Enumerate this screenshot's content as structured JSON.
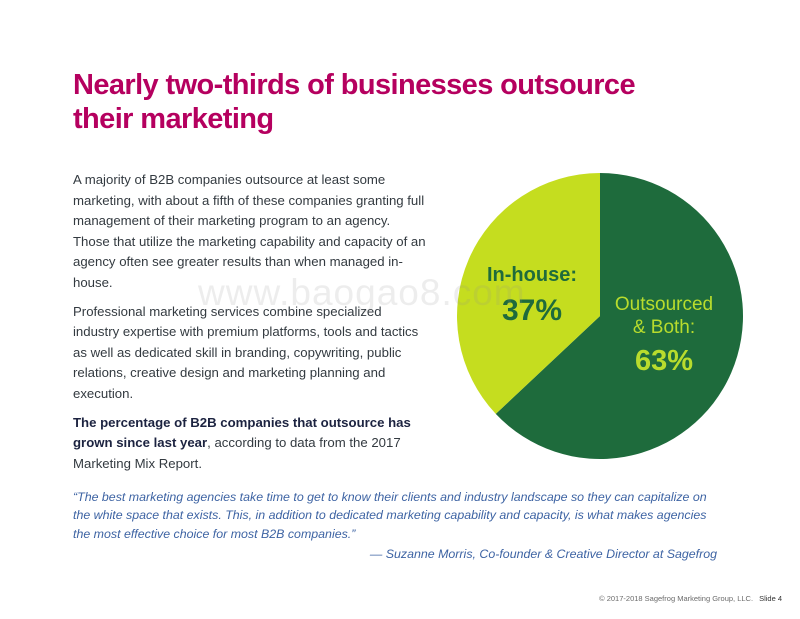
{
  "title": "Nearly two-thirds of businesses outsource their marketing",
  "paragraphs": [
    "A majority of B2B companies outsource at least some marketing, with about a fifth of these companies granting full management of their marketing program to an agency. Those that utilize the marketing capability and capacity of an agency often see greater results than when managed in-house.",
    "Professional marketing services combine specialized industry expertise with premium platforms, tools and tactics as well as dedicated skill in branding, copywriting, public relations, creative design and marketing planning and execution."
  ],
  "highlight": {
    "bold": "The percentage of B2B companies that outsource has grown since last year",
    "rest": ", according to data from the 2017 Marketing Mix Report."
  },
  "chart_data": {
    "type": "pie",
    "slices": [
      {
        "label": "In-house:",
        "value_label": "37%",
        "value": 37,
        "color": "#c5dd1f",
        "text_color": "#1f6b3c"
      },
      {
        "label": "Outsourced & Both:",
        "label_lines": [
          "Outsourced",
          "& Both:"
        ],
        "value_label": "63%",
        "value": 63,
        "color": "#1e6b3c",
        "text_color": "#b8dc2d"
      }
    ]
  },
  "quote": {
    "text": "“The best marketing agencies take time to get to know their clients and industry landscape so they can capitalize on the white space that exists. This, in addition to dedicated marketing capability and capacity, is what makes agencies the most effective choice for most B2B companies.”",
    "attribution": "— Suzanne Morris, Co-founder & Creative Director at Sagefrog"
  },
  "watermark": "www.baogao8.com",
  "footer": {
    "copyright": "© 2017-2018 Sagefrog Marketing Group, LLC.",
    "slide": "Slide 4"
  }
}
